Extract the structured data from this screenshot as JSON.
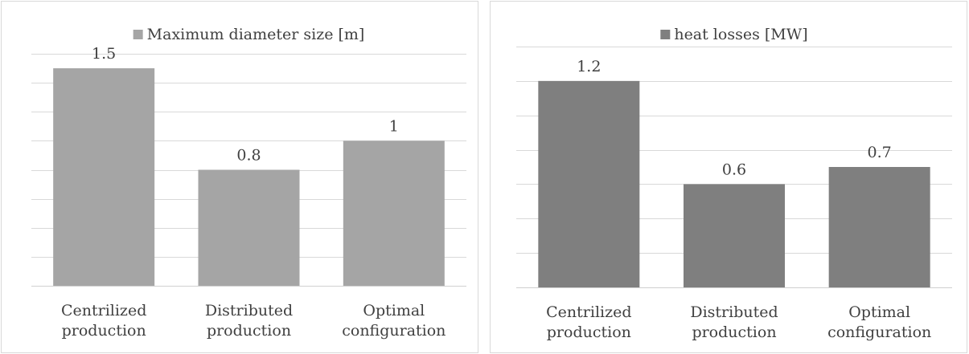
{
  "charts": [
    {
      "type": "bar",
      "legend_position": "top",
      "legend_label": "Maximum diameter size [m]",
      "color": "#a5a5a5",
      "gridlines": true,
      "ylim": [
        0,
        1.6
      ],
      "y_step": 0.2,
      "categories": [
        [
          "Centrilized",
          "production"
        ],
        [
          "Distributed",
          "production"
        ],
        [
          "Optimal",
          "configuration"
        ]
      ],
      "values": [
        1.5,
        0.8,
        1.0
      ],
      "value_labels": [
        "1.5",
        "0.8",
        "1"
      ]
    },
    {
      "type": "bar",
      "legend_position": "top",
      "legend_label": "heat losses [MW]",
      "color": "#7f7f7f",
      "gridlines": true,
      "ylim": [
        0,
        1.4
      ],
      "y_step": 0.2,
      "categories": [
        [
          "Centrilized",
          "production"
        ],
        [
          "Distributed",
          "production"
        ],
        [
          "Optimal",
          "configuration"
        ]
      ],
      "values": [
        1.2,
        0.6,
        0.7
      ],
      "value_labels": [
        "1.2",
        "0.6",
        "0.7"
      ]
    }
  ]
}
